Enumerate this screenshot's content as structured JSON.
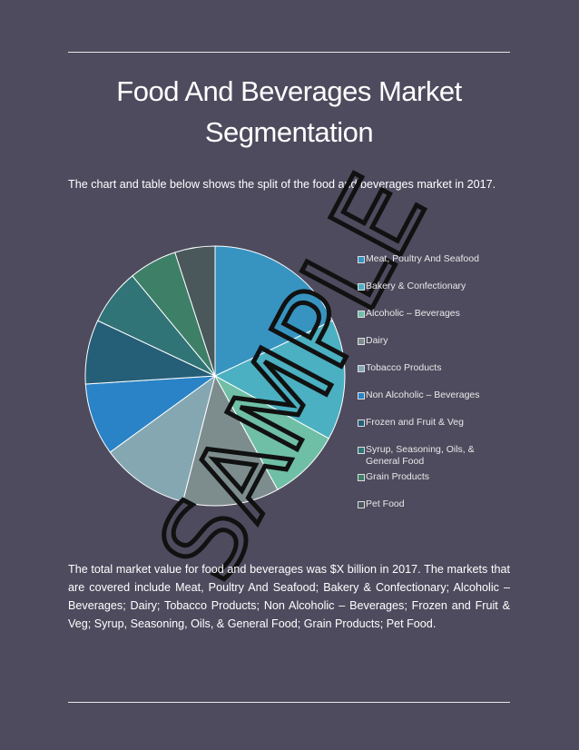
{
  "title": "Food And Beverages Market Segmentation",
  "intro": "The chart and table below shows the split of the food and beverages market in 2017.",
  "chart_data": {
    "type": "pie",
    "categories": [
      "Meat, Poultry And Seafood",
      "Bakery & Confectionary",
      "Alcoholic – Beverages",
      "Dairy",
      "Tobacco Products",
      "Non Alcoholic – Beverages",
      "Frozen and Fruit & Veg",
      "Syrup, Seasoning, Oils, & General Food",
      "Grain Products",
      "Pet Food"
    ],
    "values": [
      18,
      15,
      9,
      12,
      11,
      9,
      8,
      7,
      6,
      5
    ],
    "colors": [
      "#3794c1",
      "#4bb0c1",
      "#6fbfa6",
      "#7d8d8d",
      "#85a7b2",
      "#2a83c6",
      "#255e77",
      "#317477",
      "#3e7f68",
      "#4a585c"
    ],
    "legend": "right"
  },
  "body": "The total market value for food and beverages was $X billion in 2017. The markets that are covered include Meat, Poultry And Seafood; Bakery & Confectionary; Alcoholic – Beverages; Dairy; Tobacco Products; Non Alcoholic – Beverages; Frozen and Fruit & Veg; Syrup, Seasoning, Oils, & General Food; Grain Products; Pet Food.",
  "watermark": "SAMPLE"
}
